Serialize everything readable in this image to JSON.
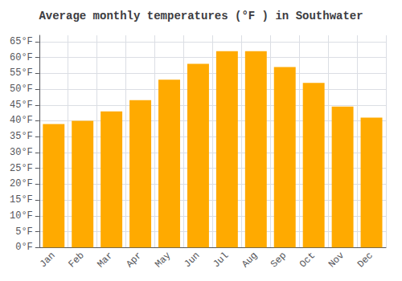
{
  "chart_data": {
    "type": "bar",
    "title": "Average monthly temperatures (°F ) in Southwater",
    "categories": [
      "Jan",
      "Feb",
      "Mar",
      "Apr",
      "May",
      "Jun",
      "Jul",
      "Aug",
      "Sep",
      "Oct",
      "Nov",
      "Dec"
    ],
    "values": [
      39,
      40,
      43,
      46.5,
      53,
      58,
      62,
      62,
      57,
      52,
      44.5,
      41
    ],
    "color": "#FFAA00",
    "ylim": [
      0,
      67
    ],
    "yticks": [
      {
        "value": 0,
        "label": "0°F"
      },
      {
        "value": 5,
        "label": "5°F"
      },
      {
        "value": 10,
        "label": "10°F"
      },
      {
        "value": 15,
        "label": "15°F"
      },
      {
        "value": 20,
        "label": "20°F"
      },
      {
        "value": 25,
        "label": "25°F"
      },
      {
        "value": 30,
        "label": "30°F"
      },
      {
        "value": 35,
        "label": "35°F"
      },
      {
        "value": 40,
        "label": "40°F"
      },
      {
        "value": 45,
        "label": "45°F"
      },
      {
        "value": 50,
        "label": "50°F"
      },
      {
        "value": 55,
        "label": "55°F"
      },
      {
        "value": 60,
        "label": "60°F"
      },
      {
        "value": 65,
        "label": "65°F"
      }
    ],
    "grid": true
  }
}
